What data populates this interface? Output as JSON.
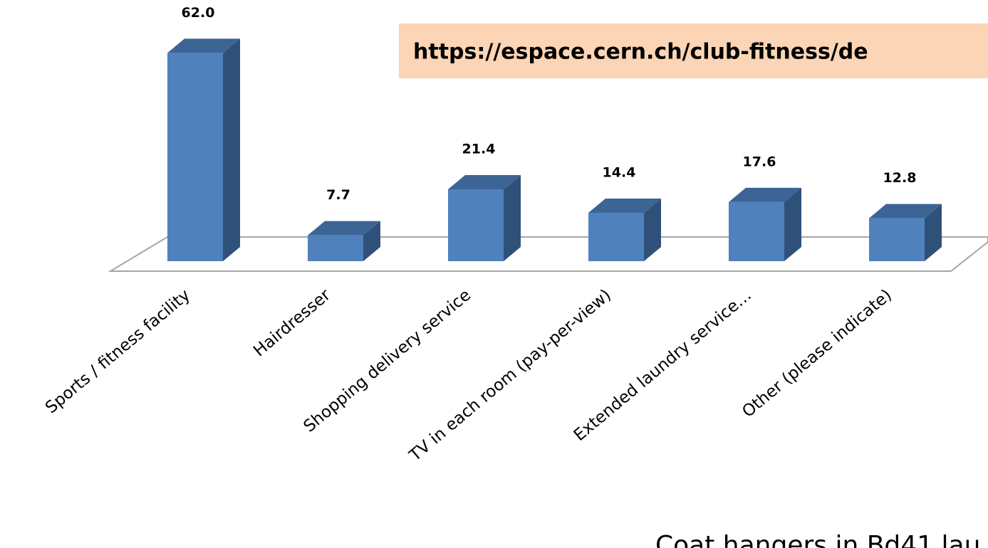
{
  "chart_data": {
    "type": "bar",
    "categories": [
      "Sports / fitness facility",
      "Hairdresser",
      "Shopping delivery service",
      "TV in each room (pay-per-view)",
      "Extended laundry service…",
      "Other (please indicate)"
    ],
    "values": [
      62.0,
      7.7,
      21.4,
      14.4,
      17.6,
      12.8
    ],
    "value_labels": [
      "62.0",
      "7.7",
      "21.4",
      "14.4",
      "17.6",
      "12.8"
    ],
    "color": "#4f81bd",
    "url_banner": "https://espace.cern.ch/club-fitness/de",
    "footer_text": "Coat hangers in Bd41 lau"
  }
}
